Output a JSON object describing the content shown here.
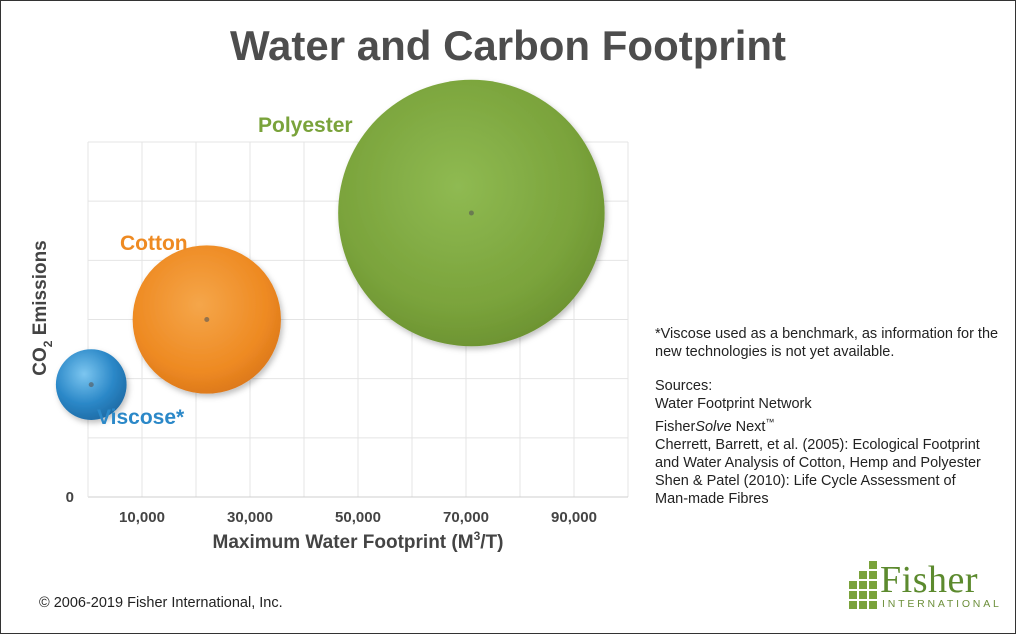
{
  "title": "Water and Carbon Footprint",
  "chart_data": {
    "type": "bubble",
    "title": "Water and Carbon Footprint",
    "xlabel_main": "Maximum Water Footprint (M",
    "xlabel_sup": "3",
    "xlabel_tail": "/T)",
    "ylabel_main": "CO",
    "ylabel_sub": "2",
    "ylabel_tail": " Emissions",
    "xticks": [
      "10,000",
      "30,000",
      "50,000",
      "70,000",
      "90,000"
    ],
    "xtick_values": [
      10000,
      30000,
      50000,
      70000,
      90000
    ],
    "yticks": [
      "0"
    ],
    "xlim": [
      0,
      100000
    ],
    "grid": true,
    "series": [
      {
        "name": "Viscose*",
        "x": 600,
        "y": 1.9,
        "size": 5000,
        "color": "#2b88c8"
      },
      {
        "name": "Cotton",
        "x": 22000,
        "y": 3.0,
        "size": 22000,
        "color": "#ee8a22"
      },
      {
        "name": "Polyester",
        "x": 71000,
        "y": 4.8,
        "size": 71000,
        "color": "#7aa33b"
      }
    ]
  },
  "note": "*Viscose used as a benchmark, as information for the new technologies is not yet available.",
  "sources": {
    "heading": "Sources:",
    "line1": "Water Footprint Network",
    "line2_a": "Fisher",
    "line2_b": "Solve",
    "line2_c": " Next",
    "line2_tm": "™",
    "line3": "Cherrett, Barrett, et al. (2005): Ecological Footprint",
    "line4": "and Water Analysis of Cotton, Hemp and Polyester",
    "line5": "Shen & Patel (2010): Life Cycle Assessment of",
    "line6": "Man-made Fibres"
  },
  "copyright": "© 2006-2019 Fisher International, Inc.",
  "logo": {
    "name": "Fisher",
    "sub": "INTERNATIONAL",
    "color": "#5c8a2e"
  }
}
